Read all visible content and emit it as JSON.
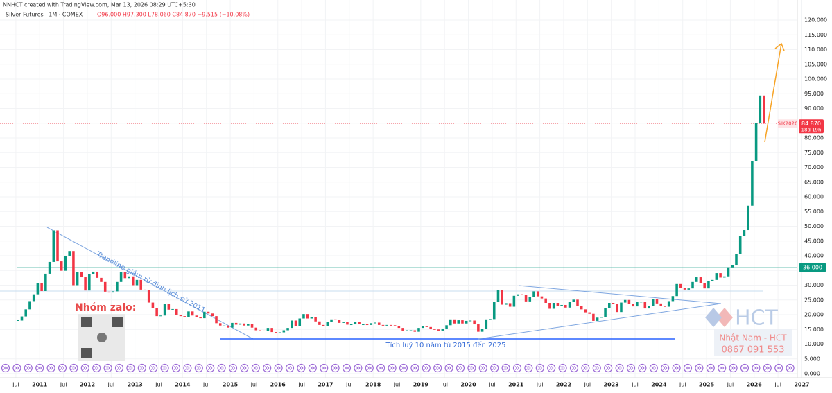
{
  "header": {
    "credit": "NNHCT created with TradingView.com, Mar 13, 2026 08:29 UTC+5:30",
    "symbol": "Silver Futures · 1M · COMEX",
    "ohlc": "O96.000  H97.300  L78.060  C84.870  −9.515 (−10.08%)"
  },
  "chart_data": {
    "type": "candlestick",
    "x": [
      "2010-07",
      "2010-08",
      "2010-09",
      "2010-10",
      "2010-11",
      "2010-12",
      "2011-01",
      "2011-02",
      "2011-03",
      "2011-04",
      "2011-05",
      "2011-06",
      "2011-07",
      "2011-08",
      "2011-09",
      "2011-10",
      "2011-11",
      "2011-12",
      "2012-01",
      "2012-02",
      "2012-03",
      "2012-04",
      "2012-05",
      "2012-06",
      "2012-07",
      "2012-08",
      "2012-09",
      "2012-10",
      "2012-11",
      "2012-12",
      "2013-01",
      "2013-02",
      "2013-03",
      "2013-04",
      "2013-05",
      "2013-06",
      "2013-07",
      "2013-08",
      "2013-09",
      "2013-10",
      "2013-11",
      "2013-12",
      "2014-01",
      "2014-02",
      "2014-03",
      "2014-04",
      "2014-05",
      "2014-06",
      "2014-07",
      "2014-08",
      "2014-09",
      "2014-10",
      "2014-11",
      "2014-12",
      "2015-01",
      "2015-02",
      "2015-03",
      "2015-04",
      "2015-05",
      "2015-06",
      "2015-07",
      "2015-08",
      "2015-09",
      "2015-10",
      "2015-11",
      "2015-12",
      "2016-01",
      "2016-02",
      "2016-03",
      "2016-04",
      "2016-05",
      "2016-06",
      "2016-07",
      "2016-08",
      "2016-09",
      "2016-10",
      "2016-11",
      "2016-12",
      "2017-01",
      "2017-02",
      "2017-03",
      "2017-04",
      "2017-05",
      "2017-06",
      "2017-07",
      "2017-08",
      "2017-09",
      "2017-10",
      "2017-11",
      "2017-12",
      "2018-01",
      "2018-02",
      "2018-03",
      "2018-04",
      "2018-05",
      "2018-06",
      "2018-07",
      "2018-08",
      "2018-09",
      "2018-10",
      "2018-11",
      "2018-12",
      "2019-01",
      "2019-02",
      "2019-03",
      "2019-04",
      "2019-05",
      "2019-06",
      "2019-07",
      "2019-08",
      "2019-09",
      "2019-10",
      "2019-11",
      "2019-12",
      "2020-01",
      "2020-02",
      "2020-03",
      "2020-04",
      "2020-05",
      "2020-06",
      "2020-07",
      "2020-08",
      "2020-09",
      "2020-10",
      "2020-11",
      "2020-12",
      "2021-01",
      "2021-02",
      "2021-03",
      "2021-04",
      "2021-05",
      "2021-06",
      "2021-07",
      "2021-08",
      "2021-09",
      "2021-10",
      "2021-11",
      "2021-12",
      "2022-01",
      "2022-02",
      "2022-03",
      "2022-04",
      "2022-05",
      "2022-06",
      "2022-07",
      "2022-08",
      "2022-09",
      "2022-10",
      "2022-11",
      "2022-12",
      "2023-01",
      "2023-02",
      "2023-03",
      "2023-04",
      "2023-05",
      "2023-06",
      "2023-07",
      "2023-08",
      "2023-09",
      "2023-10",
      "2023-11",
      "2023-12",
      "2024-01",
      "2024-02",
      "2024-03",
      "2024-04",
      "2024-05",
      "2024-06",
      "2024-07",
      "2024-08",
      "2024-09",
      "2024-10",
      "2024-11",
      "2024-12",
      "2025-01",
      "2025-02",
      "2025-03",
      "2025-04",
      "2025-05",
      "2025-06",
      "2025-07",
      "2025-08",
      "2025-09",
      "2025-10",
      "2025-11",
      "2025-12",
      "2026-01",
      "2026-02",
      "2026-03"
    ],
    "series": [
      {
        "name": "Silver Futures",
        "up_color": "#089981",
        "down_color": "#f23645",
        "values": [
          18.0,
          19.4,
          21.8,
          24.6,
          26.9,
          30.6,
          28.0,
          33.9,
          37.9,
          48.6,
          38.1,
          34.9,
          40.0,
          41.6,
          30.0,
          34.5,
          32.7,
          28.2,
          33.8,
          34.6,
          32.5,
          31.1,
          27.8,
          27.5,
          27.9,
          31.1,
          34.5,
          32.4,
          33.0,
          30.0,
          31.8,
          28.5,
          28.3,
          24.1,
          22.2,
          19.5,
          19.7,
          23.6,
          21.7,
          21.9,
          19.8,
          19.5,
          19.2,
          21.1,
          19.7,
          19.1,
          18.8,
          21.0,
          20.4,
          19.5,
          17.1,
          16.3,
          16.3,
          15.6,
          17.2,
          16.6,
          17.0,
          16.3,
          16.8,
          15.6,
          14.7,
          14.6,
          14.5,
          15.5,
          14.1,
          13.8,
          14.0,
          14.7,
          15.5,
          18.0,
          16.1,
          18.7,
          20.2,
          18.7,
          19.2,
          17.7,
          16.5,
          16.0,
          17.5,
          18.4,
          18.2,
          17.2,
          17.5,
          16.6,
          16.7,
          17.5,
          16.7,
          16.7,
          16.5,
          17.1,
          17.3,
          16.5,
          16.3,
          16.5,
          16.4,
          16.1,
          15.5,
          14.6,
          14.7,
          14.7,
          14.2,
          15.5,
          16.1,
          15.8,
          15.1,
          15.0,
          14.6,
          15.3,
          16.4,
          18.4,
          17.0,
          18.1,
          17.0,
          17.9,
          18.0,
          16.7,
          14.2,
          15.2,
          18.4,
          18.5,
          24.4,
          28.3,
          23.4,
          23.9,
          22.7,
          26.4,
          26.9,
          26.7,
          24.5,
          25.9,
          27.9,
          26.2,
          25.5,
          24.0,
          22.0,
          24.0,
          22.9,
          23.3,
          22.4,
          24.3,
          25.1,
          22.9,
          21.8,
          20.8,
          20.3,
          17.9,
          19.0,
          19.2,
          22.2,
          24.0,
          23.7,
          20.9,
          24.1,
          25.0,
          23.6,
          22.8,
          24.3,
          24.4,
          22.1,
          22.9,
          25.3,
          23.8,
          22.9,
          22.7,
          24.6,
          26.3,
          30.4,
          29.1,
          28.5,
          28.9,
          31.1,
          32.7,
          30.6,
          28.9,
          31.3,
          31.8,
          34.1,
          32.6,
          33.0,
          36.1,
          36.7,
          40.7,
          46.6,
          48.7,
          57.0,
          72.0,
          85.0,
          94.4,
          84.87
        ]
      }
    ],
    "xlim": [
      "2010-03",
      "2026-11"
    ],
    "xticks": [
      {
        "value": "2010-07",
        "label": "Jul"
      },
      {
        "value": "2011-01",
        "label": "2011"
      },
      {
        "value": "2011-07",
        "label": "Jul"
      },
      {
        "value": "2012-01",
        "label": "2012"
      },
      {
        "value": "2012-07",
        "label": "Jul"
      },
      {
        "value": "2013-01",
        "label": "2013"
      },
      {
        "value": "2013-07",
        "label": "Jul"
      },
      {
        "value": "2014-01",
        "label": "2014"
      },
      {
        "value": "2014-07",
        "label": "Jul"
      },
      {
        "value": "2015-01",
        "label": "2015"
      },
      {
        "value": "2015-07",
        "label": "Jul"
      },
      {
        "value": "2016-01",
        "label": "2016"
      },
      {
        "value": "2016-07",
        "label": "Jul"
      },
      {
        "value": "2017-01",
        "label": "2017"
      },
      {
        "value": "2017-07",
        "label": "Jul"
      },
      {
        "value": "2018-01",
        "label": "2018"
      },
      {
        "value": "2018-07",
        "label": "Jul"
      },
      {
        "value": "2019-01",
        "label": "2019"
      },
      {
        "value": "2019-07",
        "label": "Jul"
      },
      {
        "value": "2020-01",
        "label": "2020"
      },
      {
        "value": "2020-07",
        "label": "Jul"
      },
      {
        "value": "2021-01",
        "label": "2021"
      },
      {
        "value": "2021-07",
        "label": "Jul"
      },
      {
        "value": "2022-01",
        "label": "2022"
      },
      {
        "value": "2022-07",
        "label": "Jul"
      },
      {
        "value": "2023-01",
        "label": "2023"
      },
      {
        "value": "2023-07",
        "label": "Jul"
      },
      {
        "value": "2024-01",
        "label": "2024"
      },
      {
        "value": "2024-07",
        "label": "Jul"
      },
      {
        "value": "2025-01",
        "label": "2025"
      },
      {
        "value": "2025-07",
        "label": "Jul"
      },
      {
        "value": "2026-01",
        "label": "2026"
      },
      {
        "value": "2026-07",
        "label": "Jul"
      },
      {
        "value": "2027-01",
        "label": "2027"
      }
    ],
    "ylim": [
      0,
      120
    ],
    "yticks": [
      {
        "value": 0,
        "label": "0.000"
      },
      {
        "value": 5,
        "label": "5.000"
      },
      {
        "value": 10,
        "label": "10.000"
      },
      {
        "value": 15,
        "label": "15.000"
      },
      {
        "value": 20,
        "label": "20.000"
      },
      {
        "value": 25,
        "label": "25.000"
      },
      {
        "value": 30,
        "label": "30.000"
      },
      {
        "value": 35,
        "label": "35.000"
      },
      {
        "value": 40,
        "label": "40.000"
      },
      {
        "value": 45,
        "label": "45.000"
      },
      {
        "value": 50,
        "label": "50.000"
      },
      {
        "value": 55,
        "label": "55.000"
      },
      {
        "value": 60,
        "label": "60.000"
      },
      {
        "value": 65,
        "label": "65.000"
      },
      {
        "value": 70,
        "label": "70.000"
      },
      {
        "value": 75,
        "label": "75.000"
      },
      {
        "value": 80,
        "label": "80.000"
      },
      {
        "value": 85,
        "label": "85.000"
      },
      {
        "value": 90,
        "label": "90.000"
      },
      {
        "value": 95,
        "label": "95.000"
      },
      {
        "value": 100,
        "label": "100.000"
      },
      {
        "value": 105,
        "label": "105.000"
      },
      {
        "value": 110,
        "label": "110.000"
      },
      {
        "value": 115,
        "label": "115.000"
      },
      {
        "value": 120,
        "label": "120.000"
      }
    ],
    "grid": true,
    "last_price": {
      "symbol": "SIK2026",
      "value": 84.87,
      "label": "84.870",
      "countdown": "18d 19h",
      "color": "#f23645"
    },
    "level": {
      "value": 36,
      "label": "36.000",
      "color": "#089981"
    },
    "annotations": {
      "trendline": "Trendline giảm từ đỉnh lịch sử 2011",
      "zalo": "Nhóm zalo:",
      "accumulation": "Tích luỹ 10 năm từ 2015 đến 2025",
      "logo": "HCT",
      "author": "Nhật Nam - HCT",
      "phone": "0867 091 553"
    }
  }
}
